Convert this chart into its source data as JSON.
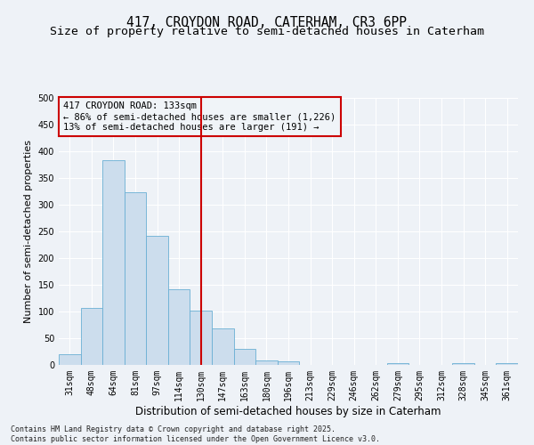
{
  "title1": "417, CROYDON ROAD, CATERHAM, CR3 6PP",
  "title2": "Size of property relative to semi-detached houses in Caterham",
  "xlabel": "Distribution of semi-detached houses by size in Caterham",
  "ylabel": "Number of semi-detached properties",
  "categories": [
    "31sqm",
    "48sqm",
    "64sqm",
    "81sqm",
    "97sqm",
    "114sqm",
    "130sqm",
    "147sqm",
    "163sqm",
    "180sqm",
    "196sqm",
    "213sqm",
    "229sqm",
    "246sqm",
    "262sqm",
    "279sqm",
    "295sqm",
    "312sqm",
    "328sqm",
    "345sqm",
    "361sqm"
  ],
  "values": [
    20,
    107,
    383,
    323,
    241,
    141,
    101,
    69,
    30,
    9,
    6,
    0,
    0,
    0,
    0,
    3,
    0,
    0,
    4,
    0,
    4
  ],
  "bar_color": "#ccdded",
  "bar_edge_color": "#6aafd4",
  "vline_index": 6,
  "vline_color": "#cc0000",
  "annotation_line1": "417 CROYDON ROAD: 133sqm",
  "annotation_line2": "← 86% of semi-detached houses are smaller (1,226)",
  "annotation_line3": "13% of semi-detached houses are larger (191) →",
  "annotation_box_edge_color": "#cc0000",
  "annotation_box_face_color": "#f0f4f8",
  "ylim": [
    0,
    500
  ],
  "yticks": [
    0,
    50,
    100,
    150,
    200,
    250,
    300,
    350,
    400,
    450,
    500
  ],
  "bg_color": "#eef2f7",
  "grid_color": "#ffffff",
  "footer": "Contains HM Land Registry data © Crown copyright and database right 2025.\nContains public sector information licensed under the Open Government Licence v3.0.",
  "title1_fontsize": 10.5,
  "title2_fontsize": 9.5,
  "xlabel_fontsize": 8.5,
  "ylabel_fontsize": 8,
  "tick_fontsize": 7,
  "annotation_fontsize": 7.5,
  "footer_fontsize": 6
}
